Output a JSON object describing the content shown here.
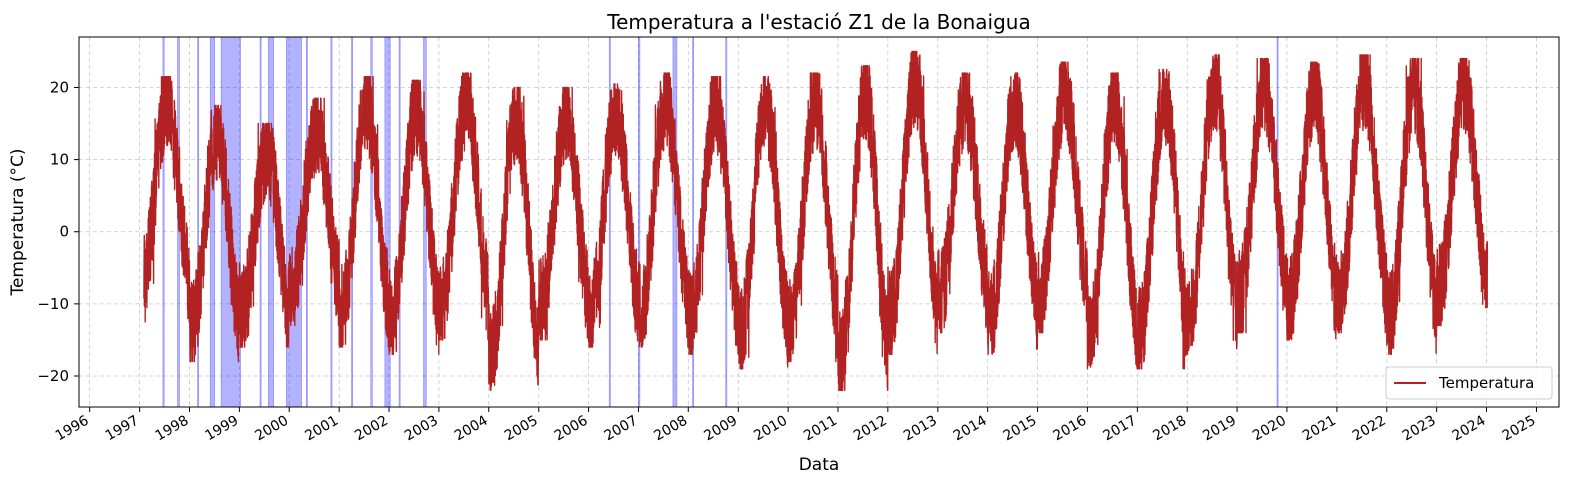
{
  "chart_data": {
    "type": "line",
    "title": "Temperatura a l'estació Z1 de la Bonaigua",
    "xlabel": "Data",
    "ylabel": "Temperatura (°C)",
    "xlim": [
      "1995-10-15",
      "2025-06-15"
    ],
    "ylim": [
      -24.3,
      27
    ],
    "x_ticks": [
      "1996",
      "1997",
      "1998",
      "1999",
      "2000",
      "2001",
      "2002",
      "2003",
      "2004",
      "2005",
      "2006",
      "2007",
      "2008",
      "2009",
      "2010",
      "2011",
      "2012",
      "2013",
      "2014",
      "2015",
      "2016",
      "2017",
      "2018",
      "2019",
      "2020",
      "2021",
      "2022",
      "2023",
      "2024",
      "2025"
    ],
    "y_ticks": [
      -20,
      -10,
      0,
      10,
      20
    ],
    "y_tick_labels": [
      "−20",
      "−10",
      "0",
      "10",
      "20"
    ],
    "grid": true,
    "legend": {
      "position": "lower-right",
      "entries": [
        "Temperatura"
      ]
    },
    "series": [
      {
        "name": "Temperatura",
        "color": "#b22222",
        "start_date": "1997-02-01",
        "end_date": "2024-01-08",
        "seasonal_peaks": [
          {
            "year": 1997,
            "max": 21.5,
            "min": -12.5
          },
          {
            "year": 1998,
            "max": 17.5,
            "min": -18.0
          },
          {
            "year": 1999,
            "max": 15.0,
            "min": -16.0
          },
          {
            "year": 2000,
            "max": 18.5,
            "min": -13.0
          },
          {
            "year": 2001,
            "max": 21.5,
            "min": -16.0
          },
          {
            "year": 2002,
            "max": 21.0,
            "min": -17.0
          },
          {
            "year": 2003,
            "max": 22.0,
            "min": -15.0
          },
          {
            "year": 2004,
            "max": 20.0,
            "min": -22.0
          },
          {
            "year": 2005,
            "max": 20.0,
            "min": -15.0
          },
          {
            "year": 2006,
            "max": 20.5,
            "min": -16.0
          },
          {
            "year": 2007,
            "max": 22.0,
            "min": -16.0
          },
          {
            "year": 2008,
            "max": 21.5,
            "min": -17.0
          },
          {
            "year": 2009,
            "max": 21.5,
            "min": -19.0
          },
          {
            "year": 2010,
            "max": 22.0,
            "min": -18.0
          },
          {
            "year": 2011,
            "max": 23.0,
            "min": -22.0
          },
          {
            "year": 2012,
            "max": 25.0,
            "min": -17.0
          },
          {
            "year": 2013,
            "max": 22.0,
            "min": -14.0
          },
          {
            "year": 2014,
            "max": 22.0,
            "min": -17.0
          },
          {
            "year": 2015,
            "max": 23.5,
            "min": -14.0
          },
          {
            "year": 2016,
            "max": 22.0,
            "min": -19.0
          },
          {
            "year": 2017,
            "max": 22.5,
            "min": -19.0
          },
          {
            "year": 2018,
            "max": 24.5,
            "min": -17.0
          },
          {
            "year": 2019,
            "max": 24.0,
            "min": -14.0
          },
          {
            "year": 2020,
            "max": 23.5,
            "min": -15.0
          },
          {
            "year": 2021,
            "max": 24.5,
            "min": -14.0
          },
          {
            "year": 2022,
            "max": 24.0,
            "min": -17.0
          },
          {
            "year": 2023,
            "max": 24.0,
            "min": -13.0
          },
          {
            "year": 2024,
            "max": 23.5,
            "min": -13.0
          }
        ]
      }
    ],
    "highlight_color": "#0000ff",
    "highlight_ranges": [
      [
        "1997-06-20",
        "1997-06-30"
      ],
      [
        "1997-10-05",
        "1997-10-20"
      ],
      [
        "1998-03-01",
        "1998-03-08"
      ],
      [
        "1998-06-01",
        "1998-07-05"
      ],
      [
        "1998-08-20",
        "1999-01-10"
      ],
      [
        "1999-06-01",
        "1999-06-08"
      ],
      [
        "1999-08-01",
        "1999-09-10"
      ],
      [
        "1999-12-10",
        "2000-04-01"
      ],
      [
        "2000-05-05",
        "2000-05-12"
      ],
      [
        "2000-11-01",
        "2000-11-08"
      ],
      [
        "2001-04-01",
        "2001-04-10"
      ],
      [
        "2001-08-20",
        "2001-09-01"
      ],
      [
        "2001-12-01",
        "2002-01-10"
      ],
      [
        "2002-03-15",
        "2002-03-22"
      ],
      [
        "2002-09-10",
        "2002-10-01"
      ],
      [
        "2006-06-01",
        "2006-06-08"
      ],
      [
        "2007-01-01",
        "2007-01-12"
      ],
      [
        "2007-09-10",
        "2007-10-10"
      ],
      [
        "2008-02-01",
        "2008-02-08"
      ],
      [
        "2008-10-01",
        "2008-10-08"
      ],
      [
        "2019-10-20",
        "2019-10-28"
      ]
    ]
  }
}
